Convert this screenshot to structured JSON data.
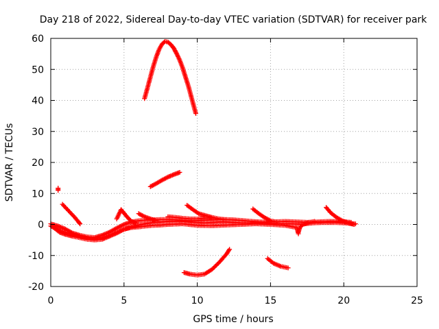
{
  "chart_data": {
    "type": "scatter",
    "title": "Day 218 of 2022, Sidereal Day-to-day VTEC variation (SDTVAR) for receiver park",
    "xlabel": "GPS time / hours",
    "ylabel": "SDTVAR / TECUs",
    "xlim": [
      0,
      25
    ],
    "ylim": [
      -20,
      60
    ],
    "xticks": [
      0,
      5,
      10,
      15,
      20,
      25
    ],
    "yticks": [
      -20,
      -10,
      0,
      10,
      20,
      30,
      40,
      50,
      60
    ],
    "grid": true,
    "marker": "+",
    "color": "#ff0000",
    "series": [
      {
        "values": [
          [
            0.0,
            -0.5
          ],
          [
            0.3,
            -1.2
          ],
          [
            0.6,
            -2.0
          ],
          [
            1.0,
            -2.6
          ],
          [
            1.5,
            -3.2
          ],
          [
            2.0,
            -3.8
          ],
          [
            2.5,
            -4.3
          ],
          [
            3.0,
            -4.6
          ],
          [
            3.5,
            -4.3
          ],
          [
            4.0,
            -3.6
          ],
          [
            4.5,
            -2.6
          ],
          [
            5.0,
            -1.6
          ],
          [
            5.5,
            -0.8
          ],
          [
            6.0,
            -0.2
          ],
          [
            6.5,
            0.3
          ],
          [
            7.0,
            0.6
          ],
          [
            7.5,
            0.8
          ],
          [
            8.0,
            1.0
          ],
          [
            8.5,
            1.0
          ],
          [
            9.0,
            1.0
          ],
          [
            9.5,
            0.8
          ],
          [
            10.0,
            0.6
          ],
          [
            10.5,
            0.5
          ],
          [
            11.0,
            0.6
          ],
          [
            11.5,
            0.8
          ],
          [
            12.0,
            0.8
          ],
          [
            12.5,
            0.6
          ],
          [
            13.0,
            0.5
          ],
          [
            13.5,
            0.5
          ],
          [
            14.0,
            0.6
          ],
          [
            14.5,
            0.5
          ],
          [
            15.0,
            0.4
          ],
          [
            15.5,
            0.3
          ],
          [
            16.0,
            0.2
          ],
          [
            16.5,
            0.2
          ],
          [
            17.0,
            0.1
          ],
          [
            17.5,
            0.3
          ],
          [
            18.0,
            0.5
          ],
          [
            18.5,
            0.6
          ],
          [
            19.0,
            0.6
          ],
          [
            19.5,
            0.6
          ],
          [
            20.0,
            0.5
          ],
          [
            20.5,
            0.3
          ],
          [
            20.8,
            0.2
          ]
        ]
      },
      {
        "values": [
          [
            0.0,
            0.2
          ],
          [
            0.5,
            -0.5
          ],
          [
            1.0,
            -1.5
          ],
          [
            1.5,
            -2.8
          ],
          [
            2.0,
            -3.5
          ],
          [
            2.5,
            -4.0
          ],
          [
            3.0,
            -4.2
          ],
          [
            3.5,
            -3.5
          ],
          [
            4.0,
            -2.5
          ],
          [
            4.5,
            -1.2
          ],
          [
            5.0,
            0.0
          ],
          [
            5.5,
            0.8
          ],
          [
            6.0,
            1.2
          ],
          [
            6.5,
            1.4
          ],
          [
            7.0,
            1.5
          ],
          [
            7.5,
            1.6
          ],
          [
            8.0,
            1.6
          ],
          [
            8.5,
            1.5
          ],
          [
            9.0,
            1.3
          ],
          [
            9.5,
            1.2
          ],
          [
            10.0,
            1.2
          ],
          [
            10.5,
            1.4
          ],
          [
            11.0,
            1.5
          ],
          [
            11.5,
            1.6
          ],
          [
            12.0,
            1.6
          ],
          [
            12.5,
            1.5
          ],
          [
            13.0,
            1.3
          ],
          [
            13.5,
            1.1
          ],
          [
            14.0,
            0.9
          ],
          [
            14.5,
            0.8
          ],
          [
            15.0,
            0.8
          ],
          [
            15.5,
            0.9
          ],
          [
            16.0,
            1.0
          ],
          [
            16.5,
            0.9
          ],
          [
            17.0,
            0.8
          ],
          [
            17.5,
            0.7
          ],
          [
            18.0,
            0.8
          ],
          [
            18.5,
            0.9
          ],
          [
            19.0,
            1.0
          ],
          [
            19.5,
            1.0
          ],
          [
            20.0,
            0.9
          ],
          [
            20.5,
            0.7
          ]
        ]
      },
      {
        "values": [
          [
            0.2,
            -1.0
          ],
          [
            0.6,
            -2.5
          ],
          [
            1.0,
            -3.2
          ],
          [
            1.5,
            -3.8
          ],
          [
            2.0,
            -4.3
          ],
          [
            2.5,
            -4.8
          ],
          [
            3.0,
            -5.0
          ],
          [
            3.5,
            -4.8
          ],
          [
            4.0,
            -3.8
          ],
          [
            4.5,
            -2.8
          ],
          [
            5.0,
            -1.5
          ],
          [
            5.5,
            -1.0
          ],
          [
            6.0,
            -0.8
          ],
          [
            6.5,
            -0.5
          ],
          [
            7.0,
            -0.3
          ],
          [
            7.5,
            -0.2
          ],
          [
            8.0,
            0.0
          ],
          [
            9.0,
            0.2
          ],
          [
            10.0,
            -0.3
          ],
          [
            11.0,
            -0.4
          ],
          [
            12.0,
            -0.2
          ],
          [
            13.0,
            0.0
          ],
          [
            14.0,
            0.2
          ],
          [
            15.0,
            0.0
          ],
          [
            16.0,
            -0.3
          ],
          [
            16.8,
            -1.0
          ],
          [
            16.9,
            -3.0
          ]
        ]
      },
      {
        "values": [
          [
            6.4,
            40.6
          ],
          [
            6.6,
            44.0
          ],
          [
            6.8,
            47.5
          ],
          [
            7.0,
            51.0
          ],
          [
            7.2,
            54.0
          ],
          [
            7.4,
            56.5
          ],
          [
            7.6,
            58.2
          ],
          [
            7.8,
            59.0
          ],
          [
            8.0,
            58.8
          ],
          [
            8.2,
            58.0
          ],
          [
            8.4,
            56.8
          ],
          [
            8.6,
            55.0
          ],
          [
            8.8,
            53.0
          ],
          [
            9.0,
            50.5
          ],
          [
            9.2,
            47.5
          ],
          [
            9.4,
            44.5
          ],
          [
            9.6,
            41.0
          ],
          [
            9.8,
            37.5
          ],
          [
            9.9,
            35.8
          ]
        ]
      },
      {
        "values": [
          [
            6.8,
            12.2
          ],
          [
            7.2,
            13.2
          ],
          [
            7.6,
            14.3
          ],
          [
            8.0,
            15.3
          ],
          [
            8.4,
            16.1
          ],
          [
            8.8,
            16.8
          ]
        ]
      },
      {
        "values": [
          [
            9.1,
            -15.5
          ],
          [
            9.5,
            -16.0
          ],
          [
            10.0,
            -16.3
          ],
          [
            10.5,
            -16.0
          ],
          [
            11.0,
            -14.5
          ],
          [
            11.5,
            -12.2
          ],
          [
            12.0,
            -9.5
          ],
          [
            12.2,
            -8.0
          ]
        ]
      },
      {
        "values": [
          [
            14.8,
            -11.0
          ],
          [
            15.2,
            -12.5
          ],
          [
            15.7,
            -13.5
          ],
          [
            16.2,
            -14.0
          ]
        ]
      },
      {
        "values": [
          [
            0.8,
            6.5
          ],
          [
            1.2,
            4.5
          ],
          [
            1.6,
            2.5
          ],
          [
            1.9,
            0.8
          ],
          [
            2.0,
            0.2
          ]
        ]
      },
      {
        "values": [
          [
            0.5,
            11.7
          ],
          [
            0.5,
            11.0
          ]
        ]
      },
      {
        "values": [
          [
            4.5,
            1.8
          ],
          [
            4.8,
            4.8
          ],
          [
            5.2,
            2.5
          ],
          [
            5.5,
            1.0
          ],
          [
            5.8,
            0.5
          ]
        ]
      },
      {
        "values": [
          [
            6.0,
            3.5
          ],
          [
            6.4,
            2.5
          ],
          [
            6.8,
            1.8
          ],
          [
            7.2,
            1.2
          ]
        ]
      },
      {
        "values": [
          [
            9.3,
            6.2
          ],
          [
            9.7,
            4.8
          ],
          [
            10.1,
            3.5
          ],
          [
            10.6,
            2.8
          ],
          [
            11.0,
            2.3
          ],
          [
            11.5,
            1.8
          ],
          [
            12.0,
            1.5
          ]
        ]
      },
      {
        "values": [
          [
            13.8,
            5.0
          ],
          [
            14.2,
            3.5
          ],
          [
            14.6,
            2.2
          ],
          [
            15.0,
            1.2
          ],
          [
            15.4,
            0.8
          ]
        ]
      },
      {
        "values": [
          [
            18.8,
            5.5
          ],
          [
            19.1,
            3.8
          ],
          [
            19.5,
            2.3
          ],
          [
            19.9,
            1.2
          ],
          [
            20.3,
            0.5
          ],
          [
            20.7,
            0.0
          ]
        ]
      },
      {
        "values": [
          [
            8.0,
            2.5
          ],
          [
            8.5,
            2.3
          ],
          [
            9.0,
            2.0
          ],
          [
            9.5,
            1.8
          ],
          [
            10.0,
            1.8
          ],
          [
            10.5,
            2.0
          ],
          [
            11.0,
            2.0
          ]
        ]
      },
      {
        "values": [
          [
            16.9,
            -2.5
          ],
          [
            17.0,
            -1.0
          ],
          [
            17.2,
            0.0
          ],
          [
            17.6,
            0.6
          ],
          [
            18.0,
            1.0
          ]
        ]
      }
    ]
  }
}
